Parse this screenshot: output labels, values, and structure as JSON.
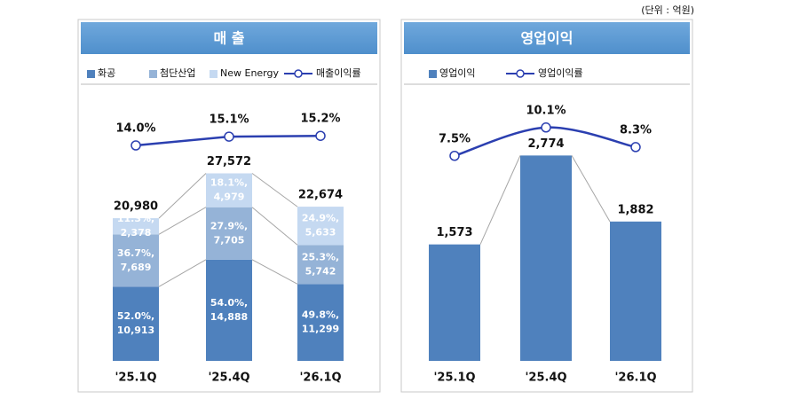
{
  "unit_note": "(단위 : 억원)",
  "chart_data": [
    {
      "type": "stacked_bar_line",
      "title": "매 출",
      "categories": [
        "'25.1Q",
        "'25.4Q",
        "'26.1Q"
      ],
      "series": [
        {
          "name": "화공",
          "color": "#4f81bd",
          "values": [
            10913,
            14888,
            11299
          ],
          "value_labels": [
            "10,913",
            "14,888",
            "11,299"
          ],
          "shares": [
            52.0,
            54.0,
            49.8
          ],
          "share_labels": [
            "52.0%,",
            "54.0%,",
            "49.8%,"
          ]
        },
        {
          "name": "첨단산업",
          "color": "#95b3d7",
          "values": [
            7689,
            7705,
            5742
          ],
          "value_labels": [
            "7,689",
            "7,705",
            "5,742"
          ],
          "shares": [
            36.7,
            27.9,
            25.3
          ],
          "share_labels": [
            "36.7%,",
            "27.9%,",
            "25.3%,"
          ]
        },
        {
          "name": "New Energy",
          "color": "#c5d9f1",
          "values": [
            2378,
            4979,
            5633
          ],
          "value_labels": [
            "2,378",
            "4,979",
            "5,633"
          ],
          "shares": [
            11.3,
            18.1,
            24.9
          ],
          "share_labels": [
            "11.3%,",
            "18.1%,",
            "24.9%,"
          ]
        },
        {
          "name": "매출이익률",
          "color": "#2b3fb0",
          "axis": "y2",
          "values": [
            14.0,
            15.1,
            15.2
          ],
          "value_labels": [
            "14.0%",
            "15.1%",
            "15.2%"
          ]
        }
      ],
      "totals": [
        20980,
        27572,
        22674
      ],
      "total_labels": [
        "20,980",
        "27,572",
        "22,674"
      ]
    },
    {
      "type": "bar_line",
      "title": "영업이익",
      "categories": [
        "'25.1Q",
        "'25.4Q",
        "'26.1Q"
      ],
      "series": [
        {
          "name": "영업이익",
          "color": "#4f81bd",
          "values": [
            1573,
            2774,
            1882
          ],
          "value_labels": [
            "1,573",
            "2,774",
            "1,882"
          ]
        },
        {
          "name": "영업이익률",
          "color": "#2b3fb0",
          "axis": "y2",
          "smooth": true,
          "values": [
            7.5,
            10.1,
            8.3
          ],
          "value_labels": [
            "7.5%",
            "10.1%",
            "8.3%"
          ]
        }
      ]
    }
  ]
}
